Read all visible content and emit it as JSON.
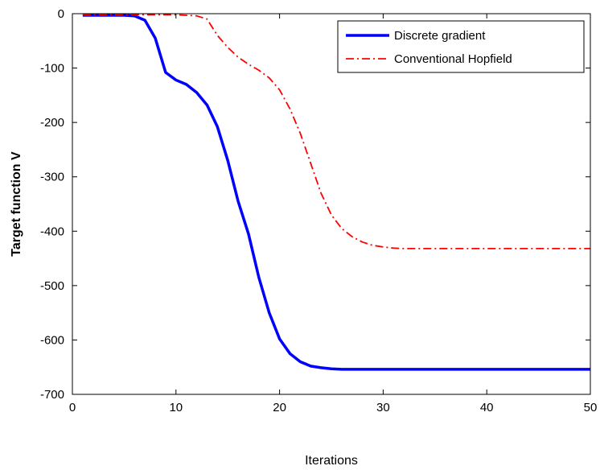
{
  "chart_data": {
    "type": "line",
    "title": "",
    "xlabel": "Iterations",
    "ylabel": "Target function V",
    "xlim": [
      0,
      50
    ],
    "ylim": [
      -700,
      0
    ],
    "xticks": [
      0,
      10,
      20,
      30,
      40,
      50
    ],
    "yticks": [
      0,
      -100,
      -200,
      -300,
      -400,
      -500,
      -600,
      -700
    ],
    "grid": false,
    "legend_position": "top-right",
    "series": [
      {
        "name": "Discrete gradient",
        "color": "#0000ff",
        "line_style": "solid",
        "x": [
          1,
          2,
          3,
          4,
          5,
          6,
          7,
          8,
          9,
          10,
          11,
          12,
          13,
          14,
          15,
          16,
          17,
          18,
          19,
          20,
          21,
          22,
          23,
          24,
          25,
          26,
          27,
          28,
          29,
          30,
          31,
          32,
          33,
          34,
          35,
          36,
          37,
          38,
          39,
          40,
          41,
          42,
          43,
          44,
          45,
          46,
          47,
          48,
          49,
          50
        ],
        "y": [
          -3,
          -3,
          -3,
          -3,
          -3,
          -4,
          -12,
          -45,
          -108,
          -122,
          -130,
          -145,
          -168,
          -208,
          -270,
          -345,
          -405,
          -485,
          -550,
          -598,
          -625,
          -640,
          -648,
          -651,
          -653,
          -654,
          -654,
          -654,
          -654,
          -654,
          -654,
          -654,
          -654,
          -654,
          -654,
          -654,
          -654,
          -654,
          -654,
          -654,
          -654,
          -654,
          -654,
          -654,
          -654,
          -654,
          -654,
          -654,
          -654,
          -654
        ]
      },
      {
        "name": "Conventional Hopfield",
        "color": "#ff0000",
        "line_style": "dash-dot",
        "x": [
          1,
          2,
          3,
          4,
          5,
          6,
          7,
          8,
          9,
          10,
          11,
          12,
          13,
          14,
          15,
          16,
          17,
          18,
          19,
          20,
          21,
          22,
          23,
          24,
          25,
          26,
          27,
          28,
          29,
          30,
          31,
          32,
          33,
          34,
          35,
          36,
          37,
          38,
          39,
          40,
          41,
          42,
          43,
          44,
          45,
          46,
          47,
          48,
          49,
          50
        ],
        "y": [
          -2,
          -2,
          -2,
          -2,
          -2,
          -2,
          -2,
          -2,
          -2,
          -2,
          -3,
          -4,
          -10,
          -40,
          -62,
          -80,
          -93,
          -104,
          -118,
          -140,
          -175,
          -220,
          -275,
          -330,
          -370,
          -395,
          -410,
          -420,
          -426,
          -429,
          -431,
          -432,
          -432,
          -432,
          -432,
          -432,
          -432,
          -432,
          -432,
          -432,
          -432,
          -432,
          -432,
          -432,
          -432,
          -432,
          -432,
          -432,
          -432,
          -432
        ]
      }
    ]
  }
}
